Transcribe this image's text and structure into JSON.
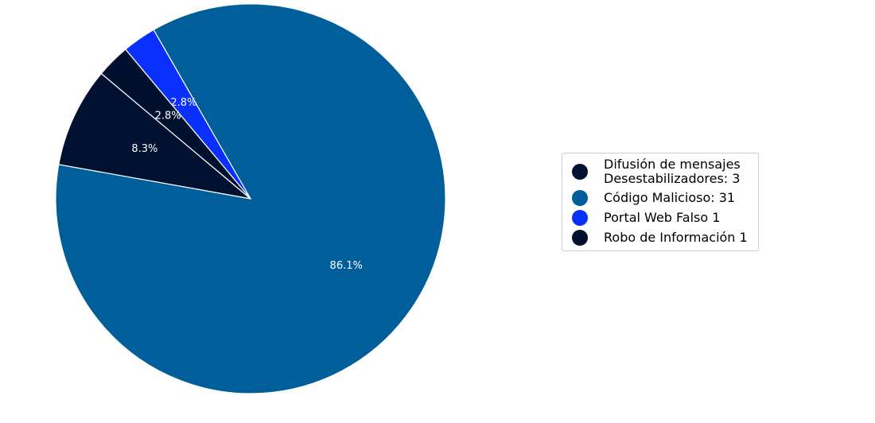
{
  "chart_data": {
    "type": "pie",
    "categories": [
      "Difusión de mensajes\nDesestabilizadores: 3",
      "Código Malicioso: 31",
      "Portal Web Falso 1",
      "Robo de Información 1"
    ],
    "values": [
      8.3,
      86.1,
      2.8,
      2.8
    ],
    "value_labels": [
      "8.3%",
      "86.1%",
      "2.8%",
      "2.8%"
    ],
    "colors": [
      "#001132",
      "#005f9a",
      "#0a30ff",
      "#00102f"
    ],
    "legend": "right"
  }
}
